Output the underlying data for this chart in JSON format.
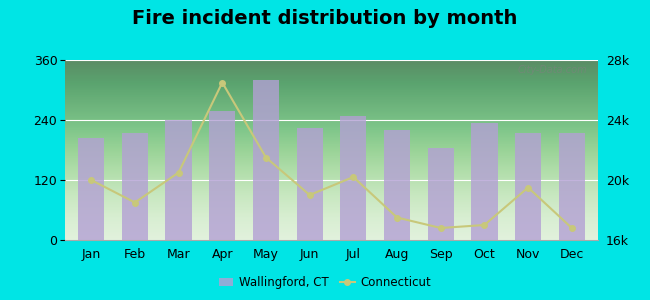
{
  "title": "Fire incident distribution by month",
  "months": [
    "Jan",
    "Feb",
    "Mar",
    "Apr",
    "May",
    "Jun",
    "Jul",
    "Aug",
    "Sep",
    "Oct",
    "Nov",
    "Dec"
  ],
  "wallingford_values": [
    205,
    215,
    240,
    258,
    320,
    225,
    248,
    220,
    185,
    235,
    215,
    215
  ],
  "connecticut_values": [
    20000,
    18500,
    20500,
    26500,
    21500,
    19000,
    20200,
    17500,
    16800,
    17000,
    19500,
    16800
  ],
  "bar_color": "#b3a0d4",
  "bar_edge_color": "#b3a0d4",
  "line_color": "#c8c87a",
  "line_marker": "o",
  "left_ylim": [
    0,
    360
  ],
  "left_yticks": [
    0,
    120,
    240,
    360
  ],
  "right_ylim": [
    16000,
    28000
  ],
  "right_yticks": [
    16000,
    20000,
    24000,
    28000
  ],
  "right_yticklabels": [
    "16k",
    "20k",
    "24k",
    "28k"
  ],
  "plot_bg_top": "#ffffff",
  "plot_bg_bottom": "#c8e6c0",
  "outer_background": "#00e5e5",
  "title_fontsize": 14,
  "tick_fontsize": 9,
  "legend_wallingford": "Wallingford, CT",
  "legend_connecticut": "Connecticut",
  "watermark": "City-Data.com"
}
